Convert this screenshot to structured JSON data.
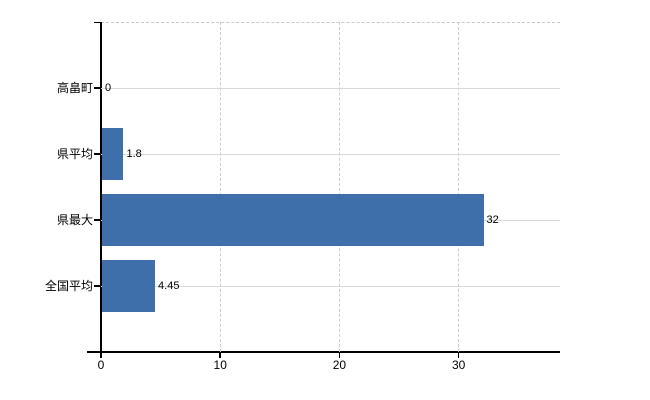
{
  "chart_data": {
    "type": "bar",
    "orientation": "horizontal",
    "title": "",
    "xlabel": "",
    "ylabel": "",
    "categories": [
      "高畠町",
      "県平均",
      "県最大",
      "全国平均"
    ],
    "values": [
      0,
      1.8,
      32,
      4.45
    ],
    "value_labels": [
      "0",
      "1.8",
      "32",
      "4.45"
    ],
    "x_ticks": [
      0,
      10,
      20,
      30
    ],
    "x_tick_labels": [
      "0",
      "10",
      "20",
      "30"
    ],
    "xlim": [
      0,
      38.5
    ],
    "grid": true,
    "legend": false,
    "bar_color": "#3e6fab",
    "axis_color": "#000000",
    "horizontal_gridline_color": "#d4dad4",
    "vertical_gridline_color": "#cccccc",
    "background_color": "#ffffff",
    "text_color": "#000000"
  }
}
